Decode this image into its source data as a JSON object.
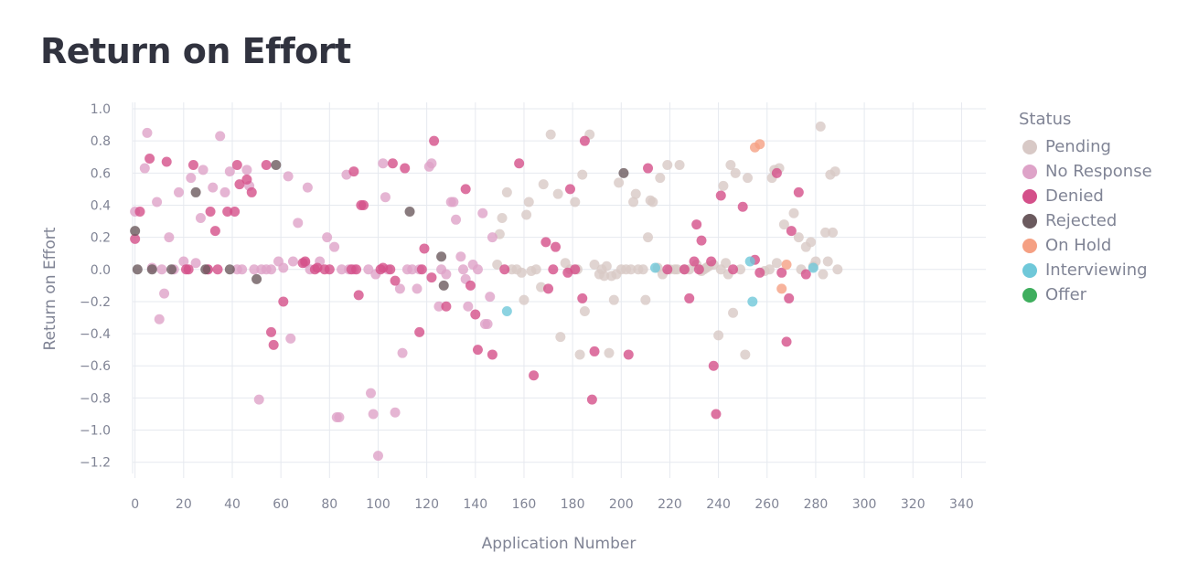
{
  "page": {
    "title": "Return on Effort"
  },
  "chart_data": {
    "type": "scatter",
    "title": "Return on Effort",
    "xlabel": "Application Number",
    "ylabel": "Return on Effort",
    "xlim": [
      -1,
      350
    ],
    "ylim": [
      -1.27,
      1.04
    ],
    "x_ticks": [
      0,
      20,
      40,
      60,
      80,
      100,
      120,
      140,
      160,
      180,
      200,
      220,
      240,
      260,
      280,
      300,
      320,
      340
    ],
    "y_ticks": [
      1.0,
      0.8,
      0.6,
      0.4,
      0.2,
      0.0,
      -0.2,
      -0.4,
      -0.6,
      -0.8,
      -1.0,
      -1.2
    ],
    "y_tick_labels": [
      "1.0",
      "0.8",
      "0.6",
      "0.4",
      "0.2",
      "0.0",
      "−0.2",
      "−0.4",
      "−0.6",
      "−0.8",
      "−1.0",
      "−1.2"
    ],
    "grid": true,
    "legend": {
      "title": "Status",
      "position": "right",
      "entries": [
        {
          "name": "Pending",
          "color": "#d8c9c6"
        },
        {
          "name": "No Response",
          "color": "#dea3c8"
        },
        {
          "name": "Denied",
          "color": "#d4508a"
        },
        {
          "name": "Rejected",
          "color": "#6b5a5e"
        },
        {
          "name": "On Hold",
          "color": "#f5a083"
        },
        {
          "name": "Interviewing",
          "color": "#6fc8d9"
        },
        {
          "name": "Offer",
          "color": "#3fae5e"
        }
      ]
    },
    "series": [
      {
        "name": "Pending",
        "points": [
          [
            149,
            0.03
          ],
          [
            150,
            0.22
          ],
          [
            151,
            0.32
          ],
          [
            153,
            0.48
          ],
          [
            155,
            0.0
          ],
          [
            157,
            0.0
          ],
          [
            159,
            -0.02
          ],
          [
            160,
            -0.19
          ],
          [
            161,
            0.34
          ],
          [
            162,
            0.42
          ],
          [
            163,
            -0.01
          ],
          [
            165,
            0.0
          ],
          [
            167,
            -0.11
          ],
          [
            168,
            0.53
          ],
          [
            171,
            0.84
          ],
          [
            174,
            0.47
          ],
          [
            175,
            -0.42
          ],
          [
            177,
            0.04
          ],
          [
            179,
            0.0
          ],
          [
            181,
            0.42
          ],
          [
            182,
            0.0
          ],
          [
            183,
            -0.53
          ],
          [
            184,
            0.59
          ],
          [
            185,
            -0.26
          ],
          [
            187,
            0.84
          ],
          [
            189,
            0.03
          ],
          [
            191,
            -0.03
          ],
          [
            192,
            0.0
          ],
          [
            193,
            -0.04
          ],
          [
            194,
            0.02
          ],
          [
            195,
            -0.52
          ],
          [
            196,
            -0.04
          ],
          [
            197,
            -0.19
          ],
          [
            198,
            -0.03
          ],
          [
            199,
            0.54
          ],
          [
            200,
            0.0
          ],
          [
            202,
            0.0
          ],
          [
            204,
            0.0
          ],
          [
            205,
            0.42
          ],
          [
            206,
            0.47
          ],
          [
            207,
            0.0
          ],
          [
            209,
            0.0
          ],
          [
            210,
            -0.19
          ],
          [
            211,
            0.2
          ],
          [
            212,
            0.43
          ],
          [
            213,
            0.42
          ],
          [
            215,
            0.01
          ],
          [
            216,
            0.57
          ],
          [
            217,
            -0.03
          ],
          [
            219,
            0.65
          ],
          [
            220,
            0.0
          ],
          [
            222,
            0.0
          ],
          [
            223,
            0.0
          ],
          [
            224,
            0.65
          ],
          [
            226,
            0.0
          ],
          [
            228,
            0.0
          ],
          [
            231,
            0.03
          ],
          [
            233,
            -0.01
          ],
          [
            234,
            0.0
          ],
          [
            235,
            0.01
          ],
          [
            236,
            0.02
          ],
          [
            238,
            0.03
          ],
          [
            240,
            -0.41
          ],
          [
            241,
            0.0
          ],
          [
            242,
            0.52
          ],
          [
            243,
            0.04
          ],
          [
            244,
            -0.03
          ],
          [
            245,
            0.65
          ],
          [
            246,
            -0.27
          ],
          [
            247,
            0.6
          ],
          [
            249,
            0.0
          ],
          [
            251,
            -0.53
          ],
          [
            252,
            0.57
          ],
          [
            259,
            -0.01
          ],
          [
            261,
            0.0
          ],
          [
            262,
            0.57
          ],
          [
            263,
            0.62
          ],
          [
            264,
            0.04
          ],
          [
            265,
            0.63
          ],
          [
            267,
            0.28
          ],
          [
            271,
            0.35
          ],
          [
            273,
            0.2
          ],
          [
            274,
            0.0
          ],
          [
            276,
            0.14
          ],
          [
            278,
            0.17
          ],
          [
            279,
            0.02
          ],
          [
            280,
            0.05
          ],
          [
            282,
            0.89
          ],
          [
            283,
            -0.03
          ],
          [
            284,
            0.23
          ],
          [
            285,
            0.05
          ],
          [
            286,
            0.59
          ],
          [
            287,
            0.23
          ],
          [
            288,
            0.61
          ],
          [
            289,
            0.0
          ]
        ]
      },
      {
        "name": "No Response",
        "points": [
          [
            0,
            0.36
          ],
          [
            4,
            0.63
          ],
          [
            5,
            0.85
          ],
          [
            7,
            0.01
          ],
          [
            9,
            0.42
          ],
          [
            10,
            -0.31
          ],
          [
            11,
            0.0
          ],
          [
            12,
            -0.15
          ],
          [
            14,
            0.2
          ],
          [
            16,
            0.0
          ],
          [
            18,
            0.48
          ],
          [
            20,
            0.05
          ],
          [
            23,
            0.57
          ],
          [
            25,
            0.04
          ],
          [
            27,
            0.32
          ],
          [
            28,
            0.62
          ],
          [
            30,
            0.0
          ],
          [
            32,
            0.51
          ],
          [
            35,
            0.83
          ],
          [
            37,
            0.48
          ],
          [
            39,
            0.61
          ],
          [
            42,
            0.0
          ],
          [
            44,
            0.0
          ],
          [
            46,
            0.62
          ],
          [
            47,
            0.52
          ],
          [
            49,
            0.0
          ],
          [
            51,
            -0.81
          ],
          [
            52,
            0.0
          ],
          [
            54,
            0.0
          ],
          [
            56,
            0.0
          ],
          [
            59,
            0.05
          ],
          [
            61,
            0.01
          ],
          [
            63,
            0.58
          ],
          [
            64,
            -0.43
          ],
          [
            65,
            0.05
          ],
          [
            67,
            0.29
          ],
          [
            70,
            0.04
          ],
          [
            71,
            0.51
          ],
          [
            72,
            0.0
          ],
          [
            76,
            0.05
          ],
          [
            79,
            0.2
          ],
          [
            82,
            0.14
          ],
          [
            83,
            -0.92
          ],
          [
            84,
            -0.92
          ],
          [
            85,
            0.0
          ],
          [
            87,
            0.59
          ],
          [
            88,
            0.0
          ],
          [
            90,
            0.0
          ],
          [
            96,
            0.0
          ],
          [
            97,
            -0.77
          ],
          [
            98,
            -0.9
          ],
          [
            99,
            -0.03
          ],
          [
            100,
            -1.16
          ],
          [
            102,
            0.66
          ],
          [
            103,
            0.45
          ],
          [
            104,
            0.0
          ],
          [
            107,
            -0.89
          ],
          [
            109,
            -0.12
          ],
          [
            110,
            -0.52
          ],
          [
            112,
            0.0
          ],
          [
            114,
            0.0
          ],
          [
            116,
            -0.12
          ],
          [
            117,
            0.0
          ],
          [
            121,
            0.64
          ],
          [
            122,
            0.66
          ],
          [
            125,
            -0.23
          ],
          [
            126,
            0.0
          ],
          [
            128,
            -0.03
          ],
          [
            130,
            0.42
          ],
          [
            131,
            0.42
          ],
          [
            132,
            0.31
          ],
          [
            134,
            0.08
          ],
          [
            135,
            0.0
          ],
          [
            136,
            -0.06
          ],
          [
            137,
            -0.23
          ],
          [
            139,
            0.03
          ],
          [
            141,
            0.0
          ],
          [
            143,
            0.35
          ],
          [
            144,
            -0.34
          ],
          [
            145,
            -0.34
          ],
          [
            146,
            -0.17
          ],
          [
            147,
            0.2
          ]
        ]
      },
      {
        "name": "Denied",
        "points": [
          [
            0,
            0.19
          ],
          [
            2,
            0.36
          ],
          [
            6,
            0.69
          ],
          [
            13,
            0.67
          ],
          [
            21,
            0.0
          ],
          [
            22,
            0.0
          ],
          [
            24,
            0.65
          ],
          [
            30,
            0.0
          ],
          [
            31,
            0.36
          ],
          [
            33,
            0.24
          ],
          [
            34,
            0.0
          ],
          [
            38,
            0.36
          ],
          [
            41,
            0.36
          ],
          [
            42,
            0.65
          ],
          [
            43,
            0.53
          ],
          [
            46,
            0.56
          ],
          [
            48,
            0.48
          ],
          [
            54,
            0.65
          ],
          [
            56,
            -0.39
          ],
          [
            57,
            -0.47
          ],
          [
            61,
            -0.2
          ],
          [
            69,
            0.04
          ],
          [
            70,
            0.05
          ],
          [
            74,
            0.0
          ],
          [
            75,
            0.01
          ],
          [
            78,
            0.0
          ],
          [
            80,
            0.0
          ],
          [
            89,
            0.0
          ],
          [
            90,
            0.61
          ],
          [
            91,
            0.0
          ],
          [
            92,
            -0.16
          ],
          [
            93,
            0.4
          ],
          [
            94,
            0.4
          ],
          [
            101,
            0.0
          ],
          [
            102,
            0.01
          ],
          [
            105,
            0.0
          ],
          [
            106,
            0.66
          ],
          [
            107,
            -0.07
          ],
          [
            111,
            0.63
          ],
          [
            117,
            -0.39
          ],
          [
            118,
            0.0
          ],
          [
            119,
            0.13
          ],
          [
            122,
            -0.05
          ],
          [
            123,
            0.8
          ],
          [
            128,
            -0.23
          ],
          [
            136,
            0.5
          ],
          [
            138,
            -0.1
          ],
          [
            140,
            -0.28
          ],
          [
            141,
            -0.5
          ],
          [
            147,
            -0.53
          ],
          [
            152,
            0.0
          ],
          [
            158,
            0.66
          ],
          [
            164,
            -0.66
          ],
          [
            169,
            0.17
          ],
          [
            170,
            -0.12
          ],
          [
            172,
            0.0
          ],
          [
            173,
            0.14
          ],
          [
            178,
            -0.02
          ],
          [
            179,
            0.5
          ],
          [
            181,
            0.0
          ],
          [
            184,
            -0.18
          ],
          [
            185,
            0.8
          ],
          [
            188,
            -0.81
          ],
          [
            189,
            -0.51
          ],
          [
            203,
            -0.53
          ],
          [
            211,
            0.63
          ],
          [
            219,
            0.0
          ],
          [
            226,
            0.0
          ],
          [
            228,
            -0.18
          ],
          [
            230,
            0.05
          ],
          [
            231,
            0.28
          ],
          [
            232,
            0.0
          ],
          [
            233,
            0.18
          ],
          [
            237,
            0.05
          ],
          [
            238,
            -0.6
          ],
          [
            239,
            -0.9
          ],
          [
            241,
            0.46
          ],
          [
            246,
            0.0
          ],
          [
            250,
            0.39
          ],
          [
            255,
            0.06
          ],
          [
            257,
            -0.02
          ],
          [
            264,
            0.6
          ],
          [
            266,
            -0.02
          ],
          [
            268,
            -0.45
          ],
          [
            269,
            -0.18
          ],
          [
            270,
            0.24
          ],
          [
            273,
            0.48
          ],
          [
            276,
            -0.03
          ]
        ]
      },
      {
        "name": "Rejected",
        "points": [
          [
            0,
            0.24
          ],
          [
            1,
            0.0
          ],
          [
            7,
            0.0
          ],
          [
            15,
            0.0
          ],
          [
            25,
            0.48
          ],
          [
            29,
            0.0
          ],
          [
            39,
            0.0
          ],
          [
            50,
            -0.06
          ],
          [
            58,
            0.65
          ],
          [
            113,
            0.36
          ],
          [
            126,
            0.08
          ],
          [
            127,
            -0.1
          ],
          [
            201,
            0.6
          ]
        ]
      },
      {
        "name": "On Hold",
        "points": [
          [
            255,
            0.76
          ],
          [
            257,
            0.78
          ],
          [
            266,
            -0.12
          ],
          [
            268,
            0.03
          ]
        ]
      },
      {
        "name": "Interviewing",
        "points": [
          [
            153,
            -0.26
          ],
          [
            214,
            0.01
          ],
          [
            253,
            0.05
          ],
          [
            254,
            -0.2
          ],
          [
            279,
            0.01
          ]
        ]
      },
      {
        "name": "Offer",
        "points": []
      }
    ]
  }
}
